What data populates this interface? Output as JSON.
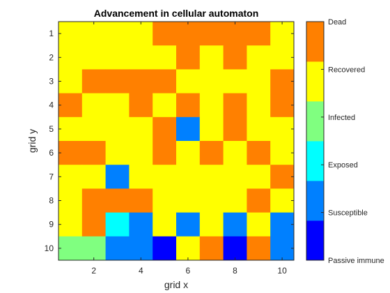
{
  "chart_data": {
    "type": "heatmap",
    "title": "Advancement in cellular automaton",
    "xlabel": "grid x",
    "ylabel": "grid y",
    "xlim": [
      0.5,
      10.5
    ],
    "ylim": [
      0.5,
      10.5
    ],
    "y_direction": "reversed",
    "x_ticks": [
      2,
      4,
      6,
      8,
      10
    ],
    "y_ticks": [
      1,
      2,
      3,
      4,
      5,
      6,
      7,
      8,
      9,
      10
    ],
    "states": [
      {
        "value": 0,
        "label": "Passive immune",
        "color": "#0000FF"
      },
      {
        "value": 1,
        "label": "Susceptible",
        "color": "#0080FF"
      },
      {
        "value": 2,
        "label": "Exposed",
        "color": "#00FFFF"
      },
      {
        "value": 3,
        "label": "Infected",
        "color": "#80FF80"
      },
      {
        "value": 4,
        "label": "Recovered",
        "color": "#FFFF00"
      },
      {
        "value": 5,
        "label": "Dead",
        "color": "#FF8000"
      }
    ],
    "grid": [
      [
        4,
        4,
        4,
        4,
        5,
        5,
        5,
        5,
        5,
        4
      ],
      [
        4,
        4,
        4,
        4,
        4,
        5,
        4,
        5,
        4,
        4
      ],
      [
        4,
        5,
        5,
        5,
        5,
        4,
        4,
        4,
        4,
        5
      ],
      [
        5,
        4,
        4,
        5,
        4,
        5,
        4,
        5,
        4,
        5
      ],
      [
        4,
        4,
        4,
        4,
        5,
        1,
        4,
        5,
        4,
        4
      ],
      [
        5,
        5,
        4,
        4,
        5,
        4,
        5,
        4,
        5,
        4
      ],
      [
        4,
        4,
        1,
        4,
        4,
        4,
        4,
        4,
        4,
        5
      ],
      [
        4,
        5,
        5,
        5,
        4,
        4,
        4,
        4,
        5,
        4
      ],
      [
        4,
        5,
        2,
        1,
        4,
        1,
        4,
        1,
        4,
        1
      ],
      [
        3,
        3,
        1,
        1,
        0,
        4,
        5,
        0,
        5,
        1
      ]
    ]
  }
}
